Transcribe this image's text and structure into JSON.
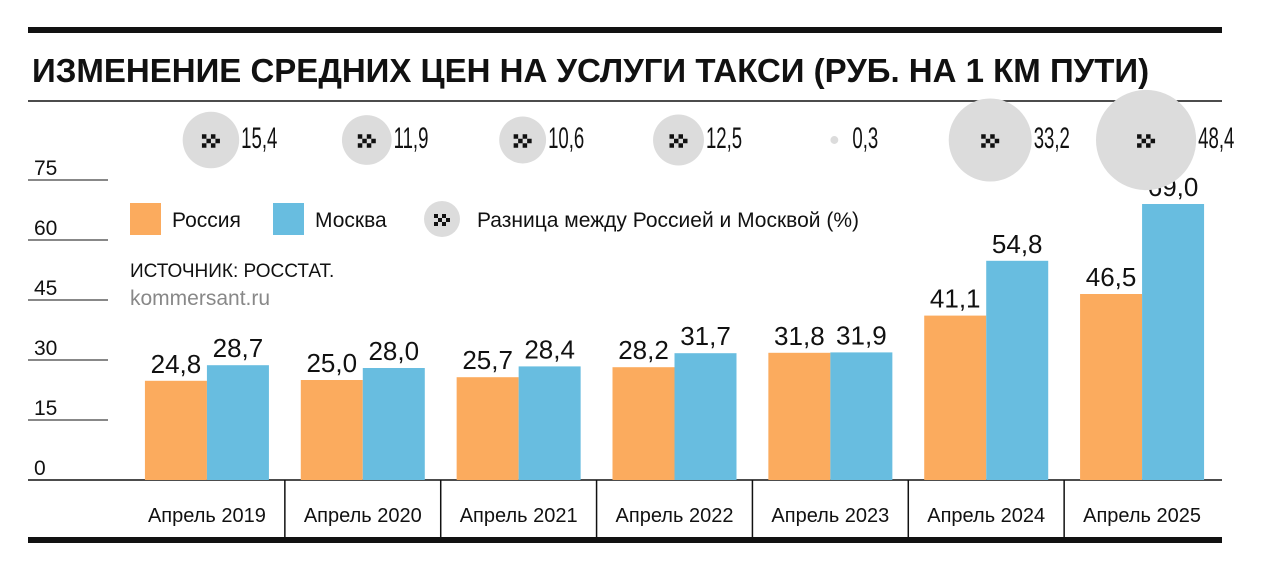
{
  "chart_data": {
    "type": "bar",
    "title": "ИЗМЕНЕНИЕ СРЕДНИХ ЦЕН НА УСЛУГИ ТАКСИ (РУБ. НА 1 КМ ПУТИ)",
    "source": "ИСТОЧНИК: РОССТАТ.",
    "credit": "kommersant.ru",
    "categories": [
      "Апрель 2019",
      "Апрель 2020",
      "Апрель 2021",
      "Апрель 2022",
      "Апрель 2023",
      "Апрель 2024",
      "Апрель 2025"
    ],
    "series": [
      {
        "name": "Россия",
        "color": "#fbab5e",
        "values": [
          24.8,
          25.0,
          25.7,
          28.2,
          31.8,
          41.1,
          46.5
        ],
        "value_labels": [
          "24,8",
          "25,0",
          "25,7",
          "28,2",
          "31,8",
          "41,1",
          "46,5"
        ]
      },
      {
        "name": "Москва",
        "color": "#68bde0",
        "values": [
          28.7,
          28.0,
          28.4,
          31.7,
          31.9,
          54.8,
          69.0
        ],
        "value_labels": [
          "28,7",
          "28,0",
          "28,4",
          "31,7",
          "31,9",
          "54,8",
          "69,0"
        ]
      },
      {
        "name": "Разница между Россией и Москвой (%)",
        "color": "#dcdcdc",
        "values": [
          15.4,
          11.9,
          10.6,
          12.5,
          0.3,
          33.2,
          48.4
        ],
        "value_labels": [
          "15,4",
          "11,9",
          "10,6",
          "12,5",
          "0,3",
          "33,2",
          "48,4"
        ]
      }
    ],
    "ylim": [
      0,
      75
    ],
    "yticks": [
      0,
      15,
      30,
      45,
      60,
      75
    ]
  }
}
